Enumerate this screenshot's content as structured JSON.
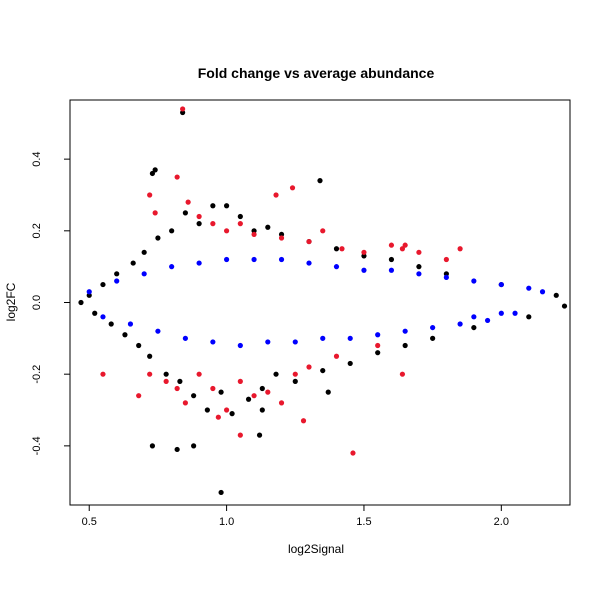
{
  "chart_data": {
    "type": "scatter",
    "title": "Fold change vs average abundance",
    "xlabel": "log2Signal",
    "ylabel": "log2FC",
    "xlim": [
      0.43,
      2.25
    ],
    "ylim": [
      -0.565,
      0.565
    ],
    "xticks": [
      0.5,
      1.0,
      1.5,
      2.0
    ],
    "xtick_labels": [
      "0.5",
      "1.0",
      "1.5",
      "2.0"
    ],
    "yticks": [
      -0.4,
      -0.2,
      0.0,
      0.2,
      0.4
    ],
    "ytick_labels": [
      "-0.4",
      "-0.2",
      "0.0",
      "0.2",
      "0.4"
    ],
    "grid": false,
    "legend": "none",
    "series": [
      {
        "color": "#000000",
        "points": [
          [
            0.47,
            0.0
          ],
          [
            0.5,
            0.02
          ],
          [
            0.52,
            -0.03
          ],
          [
            0.55,
            0.05
          ],
          [
            0.58,
            -0.06
          ],
          [
            0.6,
            0.08
          ],
          [
            0.63,
            -0.09
          ],
          [
            0.66,
            0.11
          ],
          [
            0.68,
            -0.12
          ],
          [
            0.7,
            0.14
          ],
          [
            0.72,
            -0.15
          ],
          [
            0.75,
            0.18
          ],
          [
            0.78,
            -0.2
          ],
          [
            0.8,
            0.2
          ],
          [
            0.83,
            -0.22
          ],
          [
            0.85,
            0.25
          ],
          [
            0.88,
            -0.26
          ],
          [
            0.9,
            0.22
          ],
          [
            0.93,
            -0.3
          ],
          [
            0.95,
            0.27
          ],
          [
            0.98,
            -0.25
          ],
          [
            1.0,
            0.27
          ],
          [
            1.02,
            -0.31
          ],
          [
            1.05,
            0.24
          ],
          [
            1.08,
            -0.27
          ],
          [
            1.1,
            0.2
          ],
          [
            1.13,
            -0.24
          ],
          [
            1.15,
            0.21
          ],
          [
            1.18,
            -0.2
          ],
          [
            1.2,
            0.19
          ],
          [
            1.25,
            -0.22
          ],
          [
            1.3,
            0.17
          ],
          [
            1.35,
            -0.19
          ],
          [
            1.4,
            0.15
          ],
          [
            1.45,
            -0.17
          ],
          [
            1.5,
            0.13
          ],
          [
            1.55,
            -0.14
          ],
          [
            1.6,
            0.12
          ],
          [
            1.65,
            -0.12
          ],
          [
            1.7,
            0.1
          ],
          [
            1.75,
            -0.1
          ],
          [
            1.8,
            0.08
          ],
          [
            1.9,
            -0.07
          ],
          [
            2.0,
            0.05
          ],
          [
            2.1,
            -0.04
          ],
          [
            2.2,
            0.02
          ],
          [
            2.23,
            -0.01
          ],
          [
            0.84,
            0.53
          ],
          [
            0.74,
            0.37
          ],
          [
            0.73,
            0.36
          ],
          [
            1.34,
            0.34
          ],
          [
            0.98,
            -0.53
          ],
          [
            0.82,
            -0.41
          ],
          [
            0.88,
            -0.4
          ],
          [
            0.73,
            -0.4
          ],
          [
            1.12,
            -0.37
          ],
          [
            1.13,
            -0.3
          ],
          [
            1.37,
            -0.25
          ]
        ]
      },
      {
        "color": "#e8182d",
        "points": [
          [
            0.84,
            0.54
          ],
          [
            0.82,
            0.35
          ],
          [
            0.72,
            0.3
          ],
          [
            0.74,
            0.25
          ],
          [
            0.86,
            0.28
          ],
          [
            0.9,
            0.24
          ],
          [
            0.95,
            0.22
          ],
          [
            1.0,
            0.2
          ],
          [
            1.05,
            0.22
          ],
          [
            1.18,
            0.3
          ],
          [
            1.24,
            0.32
          ],
          [
            1.1,
            0.19
          ],
          [
            1.2,
            0.18
          ],
          [
            1.3,
            0.17
          ],
          [
            1.35,
            0.2
          ],
          [
            1.42,
            0.15
          ],
          [
            1.5,
            0.14
          ],
          [
            1.6,
            0.16
          ],
          [
            1.65,
            0.16
          ],
          [
            1.7,
            0.14
          ],
          [
            1.8,
            0.12
          ],
          [
            1.85,
            0.15
          ],
          [
            1.64,
            0.15
          ],
          [
            0.55,
            -0.2
          ],
          [
            0.68,
            -0.26
          ],
          [
            0.72,
            -0.2
          ],
          [
            0.78,
            -0.22
          ],
          [
            0.82,
            -0.24
          ],
          [
            0.85,
            -0.28
          ],
          [
            0.9,
            -0.2
          ],
          [
            0.95,
            -0.24
          ],
          [
            1.0,
            -0.3
          ],
          [
            1.05,
            -0.22
          ],
          [
            1.1,
            -0.26
          ],
          [
            1.15,
            -0.25
          ],
          [
            1.2,
            -0.28
          ],
          [
            1.25,
            -0.2
          ],
          [
            1.3,
            -0.18
          ],
          [
            1.4,
            -0.15
          ],
          [
            1.46,
            -0.42
          ],
          [
            1.55,
            -0.12
          ],
          [
            1.64,
            -0.2
          ],
          [
            1.05,
            -0.37
          ],
          [
            0.97,
            -0.32
          ],
          [
            1.28,
            -0.33
          ]
        ]
      },
      {
        "color": "#0000ff",
        "points": [
          [
            0.5,
            0.03
          ],
          [
            0.55,
            -0.04
          ],
          [
            0.6,
            0.06
          ],
          [
            0.65,
            -0.06
          ],
          [
            0.7,
            0.08
          ],
          [
            0.75,
            -0.08
          ],
          [
            0.8,
            0.1
          ],
          [
            0.85,
            -0.1
          ],
          [
            0.9,
            0.11
          ],
          [
            0.95,
            -0.11
          ],
          [
            1.0,
            0.12
          ],
          [
            1.05,
            -0.12
          ],
          [
            1.1,
            0.12
          ],
          [
            1.15,
            -0.11
          ],
          [
            1.2,
            0.12
          ],
          [
            1.25,
            -0.11
          ],
          [
            1.3,
            0.11
          ],
          [
            1.35,
            -0.1
          ],
          [
            1.4,
            0.1
          ],
          [
            1.45,
            -0.1
          ],
          [
            1.5,
            0.09
          ],
          [
            1.55,
            -0.09
          ],
          [
            1.6,
            0.09
          ],
          [
            1.65,
            -0.08
          ],
          [
            1.7,
            0.08
          ],
          [
            1.75,
            -0.07
          ],
          [
            1.8,
            0.07
          ],
          [
            1.85,
            -0.06
          ],
          [
            1.9,
            0.06
          ],
          [
            1.95,
            -0.05
          ],
          [
            2.0,
            0.05
          ],
          [
            2.05,
            -0.03
          ],
          [
            2.1,
            0.04
          ],
          [
            2.15,
            0.03
          ],
          [
            1.9,
            -0.04
          ],
          [
            2.0,
            -0.03
          ]
        ]
      }
    ]
  }
}
